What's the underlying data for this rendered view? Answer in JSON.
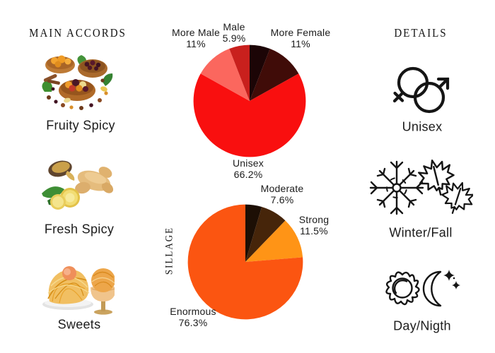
{
  "page": {
    "background": "#ffffff",
    "text_color": "#1b1b1b"
  },
  "left_column": {
    "header": "MAIN ACCORDS",
    "items": [
      {
        "label": "Fruity Spicy",
        "image": "dried-fruits-bowls-photo"
      },
      {
        "label": "Fresh Spicy",
        "image": "ginger-root-photo"
      },
      {
        "label": "Sweets",
        "image": "caramel-dessert-photo"
      }
    ]
  },
  "right_column": {
    "header": "DETAILS",
    "items": [
      {
        "label": "Unisex",
        "icon": "unisex-gender-symbols-icon"
      },
      {
        "label": "Winter/Fall",
        "icon": "snowflake-and-maple-leaves-icon"
      },
      {
        "label": "Day/Nigth",
        "icon": "sun-and-moon-icon"
      }
    ]
  },
  "chart_data": [
    {
      "type": "pie",
      "name": "gender",
      "title": "",
      "start_angle": "12-oclock",
      "direction": "clockwise",
      "labels_outside": true,
      "total": 100,
      "slices": [
        {
          "label": "",
          "display": "",
          "value": 5.9,
          "color": "#1c0506"
        },
        {
          "label": "More Female",
          "display": "11%",
          "value": 11,
          "color": "#400c08"
        },
        {
          "label": "Unisex",
          "display": "66.2%",
          "value": 66.2,
          "color": "#f90f0f"
        },
        {
          "label": "More Male",
          "display": "11%",
          "value": 11,
          "color": "#fb675e"
        },
        {
          "label": "Male",
          "display": "5.9%",
          "value": 5.9,
          "color": "#c9201d"
        }
      ]
    },
    {
      "type": "pie",
      "name": "sillage",
      "title": "SILLAGE",
      "start_angle": "12-oclock",
      "direction": "clockwise",
      "labels_outside": true,
      "total": 100,
      "slices": [
        {
          "label": "",
          "display": "",
          "value": 4.6,
          "color": "#1d0f05"
        },
        {
          "label": "Moderate",
          "display": "7.6%",
          "value": 7.6,
          "color": "#46250a"
        },
        {
          "label": "Strong",
          "display": "11.5%",
          "value": 11.5,
          "color": "#ff9416"
        },
        {
          "label": "Enormous",
          "display": "76.3%",
          "value": 76.3,
          "color": "#fb5511"
        }
      ]
    }
  ]
}
